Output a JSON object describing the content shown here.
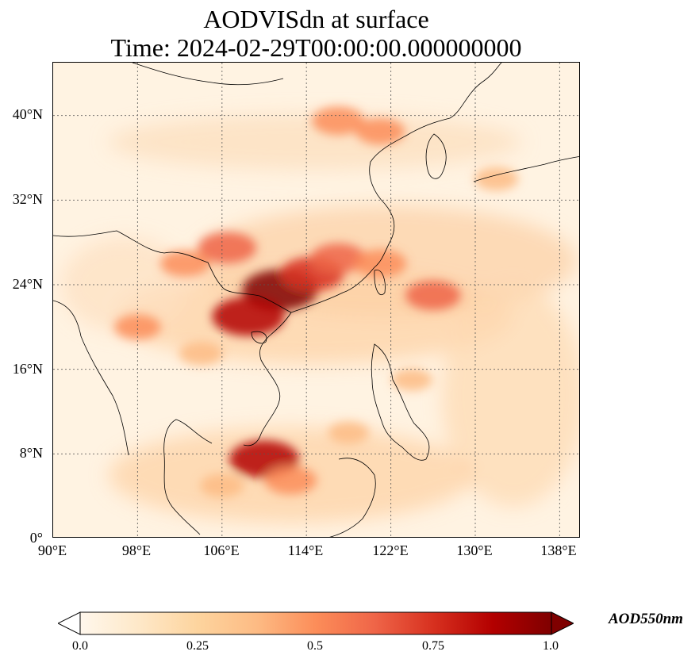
{
  "title": {
    "line1": "AODVISdn at surface",
    "line2": "Time: 2024-02-29T00:00:00.000000000"
  },
  "map": {
    "projection": "PlateCarree",
    "lon_range": [
      90,
      140
    ],
    "lat_range": [
      0,
      45
    ],
    "gridlines": "dotted",
    "x_ticks": [
      "90°E",
      "98°E",
      "106°E",
      "114°E",
      "122°E",
      "130°E",
      "138°E"
    ],
    "y_ticks": [
      "0°",
      "8°N",
      "16°N",
      "24°N",
      "32°N",
      "40°N"
    ],
    "background_color": "#fff8ee",
    "coastline_color": "#000000"
  },
  "colorbar": {
    "label": "AOD550nm",
    "colormap": "OrRd",
    "range": [
      0.0,
      1.0
    ],
    "extend": "both",
    "ticks": [
      "0.0",
      "0.25",
      "0.5",
      "0.75",
      "1.0"
    ],
    "colors": [
      "#fff7ec",
      "#fee8c8",
      "#fdd49e",
      "#fdbb84",
      "#fc8d59",
      "#ef6548",
      "#d7301f",
      "#b30000",
      "#7f0000"
    ]
  },
  "chart_data": {
    "type": "heatmap",
    "title": "AODVISdn at surface\nTime: 2024-02-29T00:00:00.000000000",
    "variable": "AOD550nm",
    "xlabel": "",
    "ylabel": "",
    "xlim": [
      90,
      140
    ],
    "ylim": [
      0,
      45
    ],
    "vmin": 0.0,
    "vmax": 1.0,
    "hotspots": [
      {
        "lon": 111.5,
        "lat": 23.5,
        "value": 0.95
      },
      {
        "lon": 108.5,
        "lat": 21.0,
        "value": 0.9
      },
      {
        "lon": 114.5,
        "lat": 25.0,
        "value": 0.75
      },
      {
        "lon": 117.0,
        "lat": 26.5,
        "value": 0.6
      },
      {
        "lon": 106.5,
        "lat": 27.5,
        "value": 0.65
      },
      {
        "lon": 102.5,
        "lat": 26.0,
        "value": 0.5
      },
      {
        "lon": 121.0,
        "lat": 26.0,
        "value": 0.55
      },
      {
        "lon": 126.0,
        "lat": 23.0,
        "value": 0.6
      },
      {
        "lon": 110.0,
        "lat": 7.5,
        "value": 0.85
      },
      {
        "lon": 112.5,
        "lat": 5.5,
        "value": 0.55
      },
      {
        "lon": 117.0,
        "lat": 39.5,
        "value": 0.55
      },
      {
        "lon": 121.0,
        "lat": 38.5,
        "value": 0.5
      },
      {
        "lon": 98.0,
        "lat": 20.0,
        "value": 0.45
      },
      {
        "lon": 104.0,
        "lat": 17.5,
        "value": 0.4
      },
      {
        "lon": 106.0,
        "lat": 5.0,
        "value": 0.4
      },
      {
        "lon": 132.0,
        "lat": 34.0,
        "value": 0.4
      },
      {
        "lon": 124.0,
        "lat": 15.0,
        "value": 0.35
      },
      {
        "lon": 118.0,
        "lat": 10.0,
        "value": 0.35
      }
    ]
  }
}
